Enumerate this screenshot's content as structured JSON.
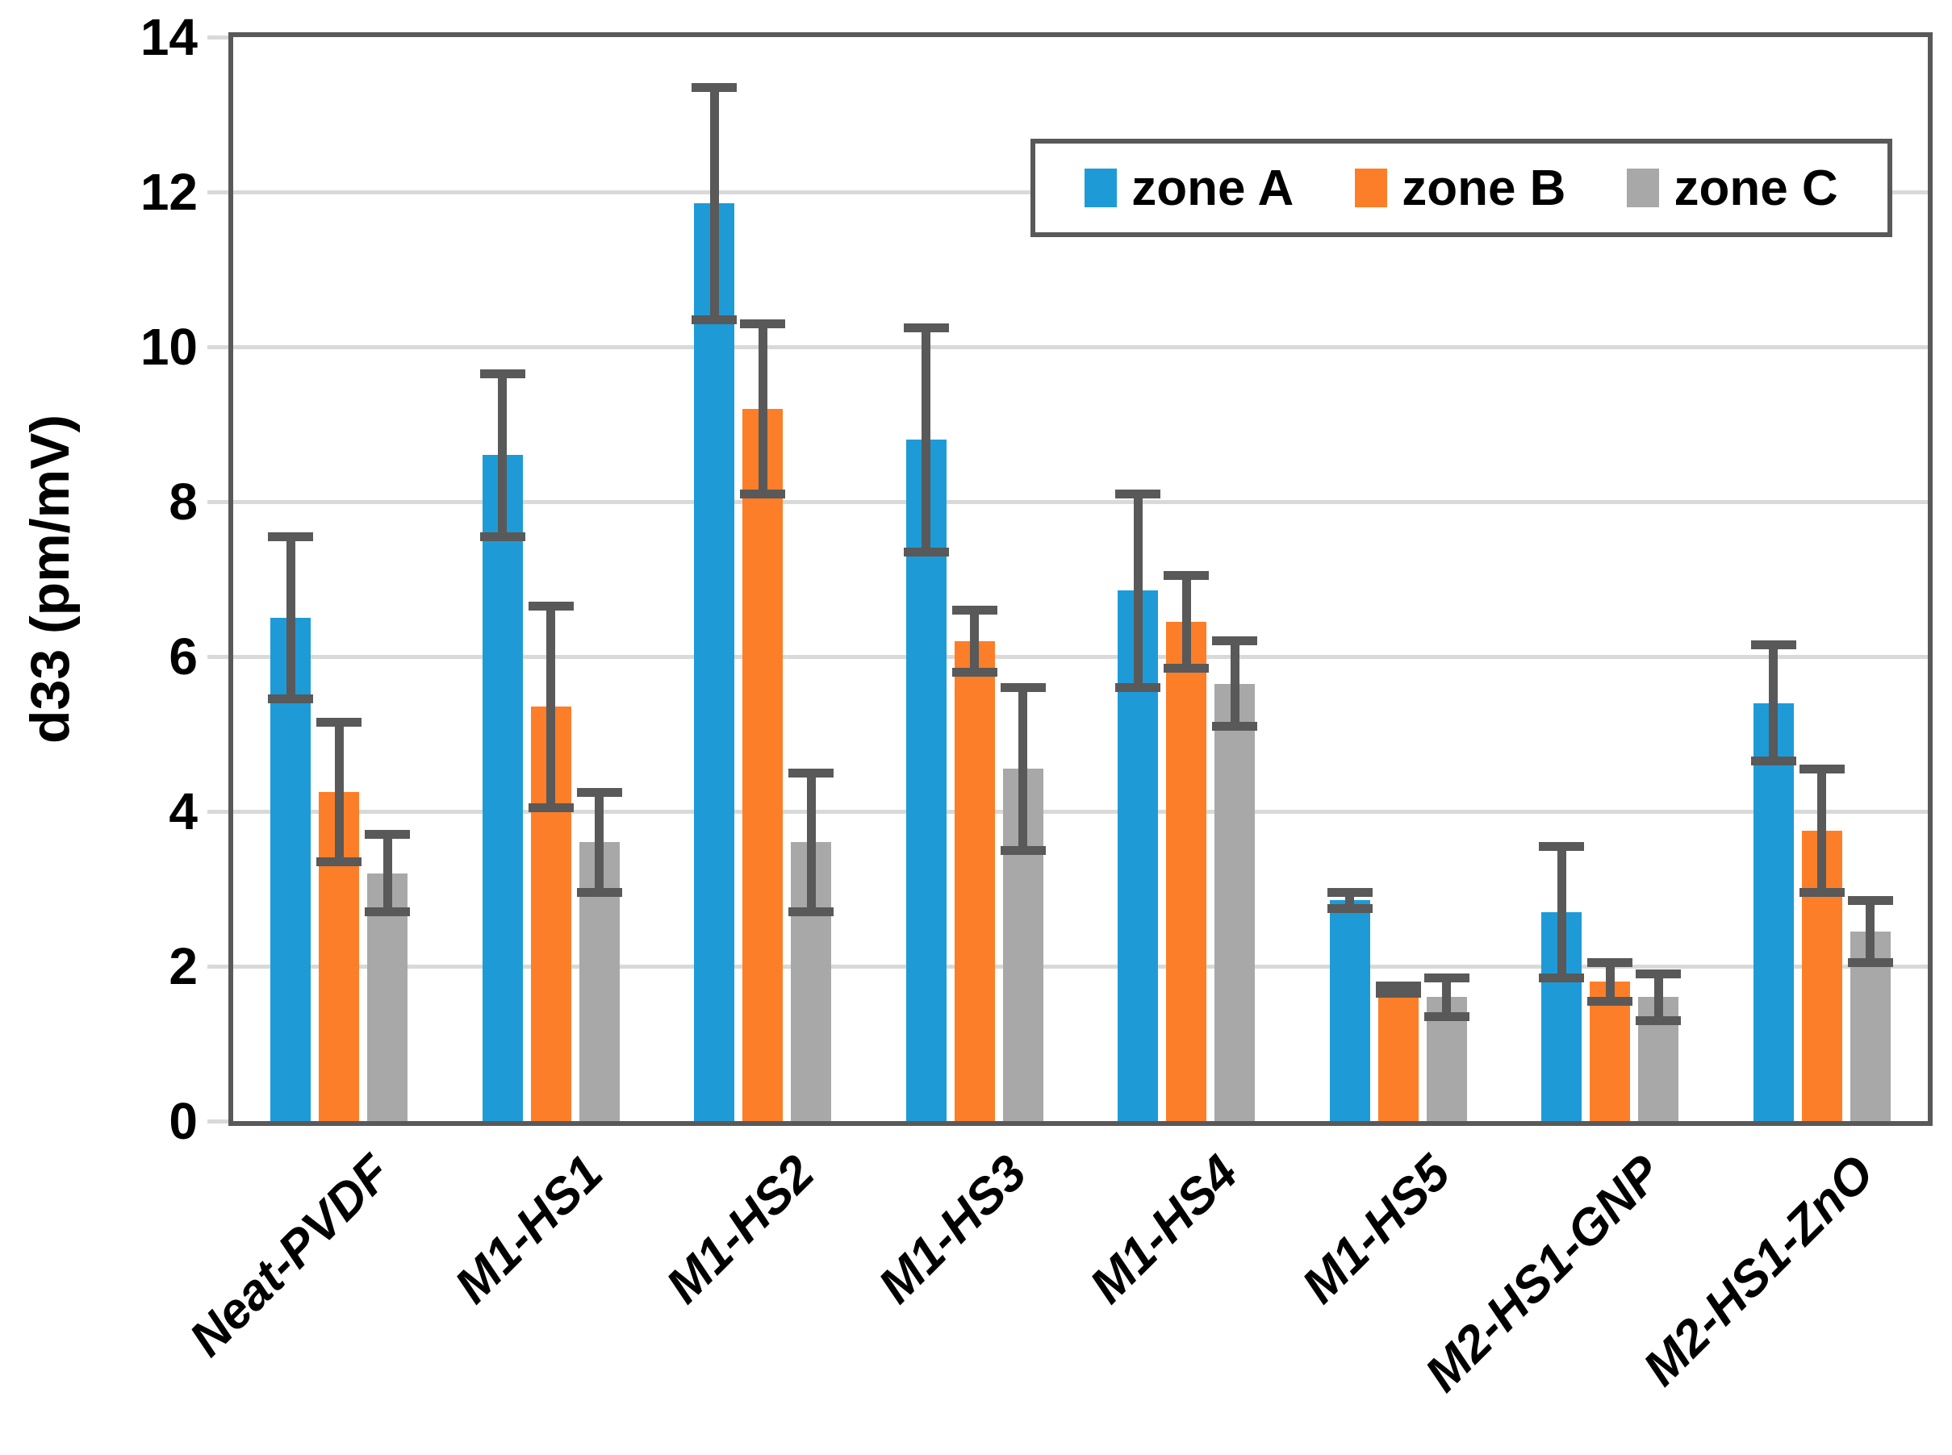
{
  "figure": {
    "background_color": "#ffffff",
    "axis_frame_color": "#595959",
    "gridline_color": "#d9d9d9",
    "error_bar_color": "#595959"
  },
  "chart_data": {
    "type": "bar",
    "title": "",
    "xlabel": "",
    "ylabel": "d33 (pm/mV)",
    "ylim": [
      0,
      14
    ],
    "yticks": [
      0,
      2,
      4,
      6,
      8,
      10,
      12,
      14
    ],
    "grid": true,
    "legend_position": "top-right-inside",
    "categories": [
      "Neat-PVDF",
      "M1-HS1",
      "M1-HS2",
      "M1-HS3",
      "M1-HS4",
      "M1-HS5",
      "M2-HS1-GNP",
      "M2-HS1-ZnO"
    ],
    "series": [
      {
        "name": "zone A",
        "color": "#1e9bd7",
        "values": [
          6.5,
          8.6,
          11.85,
          8.8,
          6.85,
          2.85,
          2.7,
          5.4
        ],
        "errors": [
          1.05,
          1.05,
          1.5,
          1.45,
          1.25,
          0.1,
          0.85,
          0.75
        ]
      },
      {
        "name": "zone B",
        "color": "#fd7e28",
        "values": [
          4.25,
          5.35,
          9.2,
          6.2,
          6.45,
          1.7,
          1.8,
          3.75
        ],
        "errors": [
          0.9,
          1.3,
          1.1,
          0.4,
          0.6,
          0.05,
          0.25,
          0.8
        ]
      },
      {
        "name": "zone C",
        "color": "#a8a8a8",
        "values": [
          3.2,
          3.6,
          3.6,
          4.55,
          5.65,
          1.6,
          1.6,
          2.45
        ],
        "errors": [
          0.5,
          0.65,
          0.9,
          1.05,
          0.55,
          0.25,
          0.3,
          0.4
        ]
      }
    ]
  }
}
